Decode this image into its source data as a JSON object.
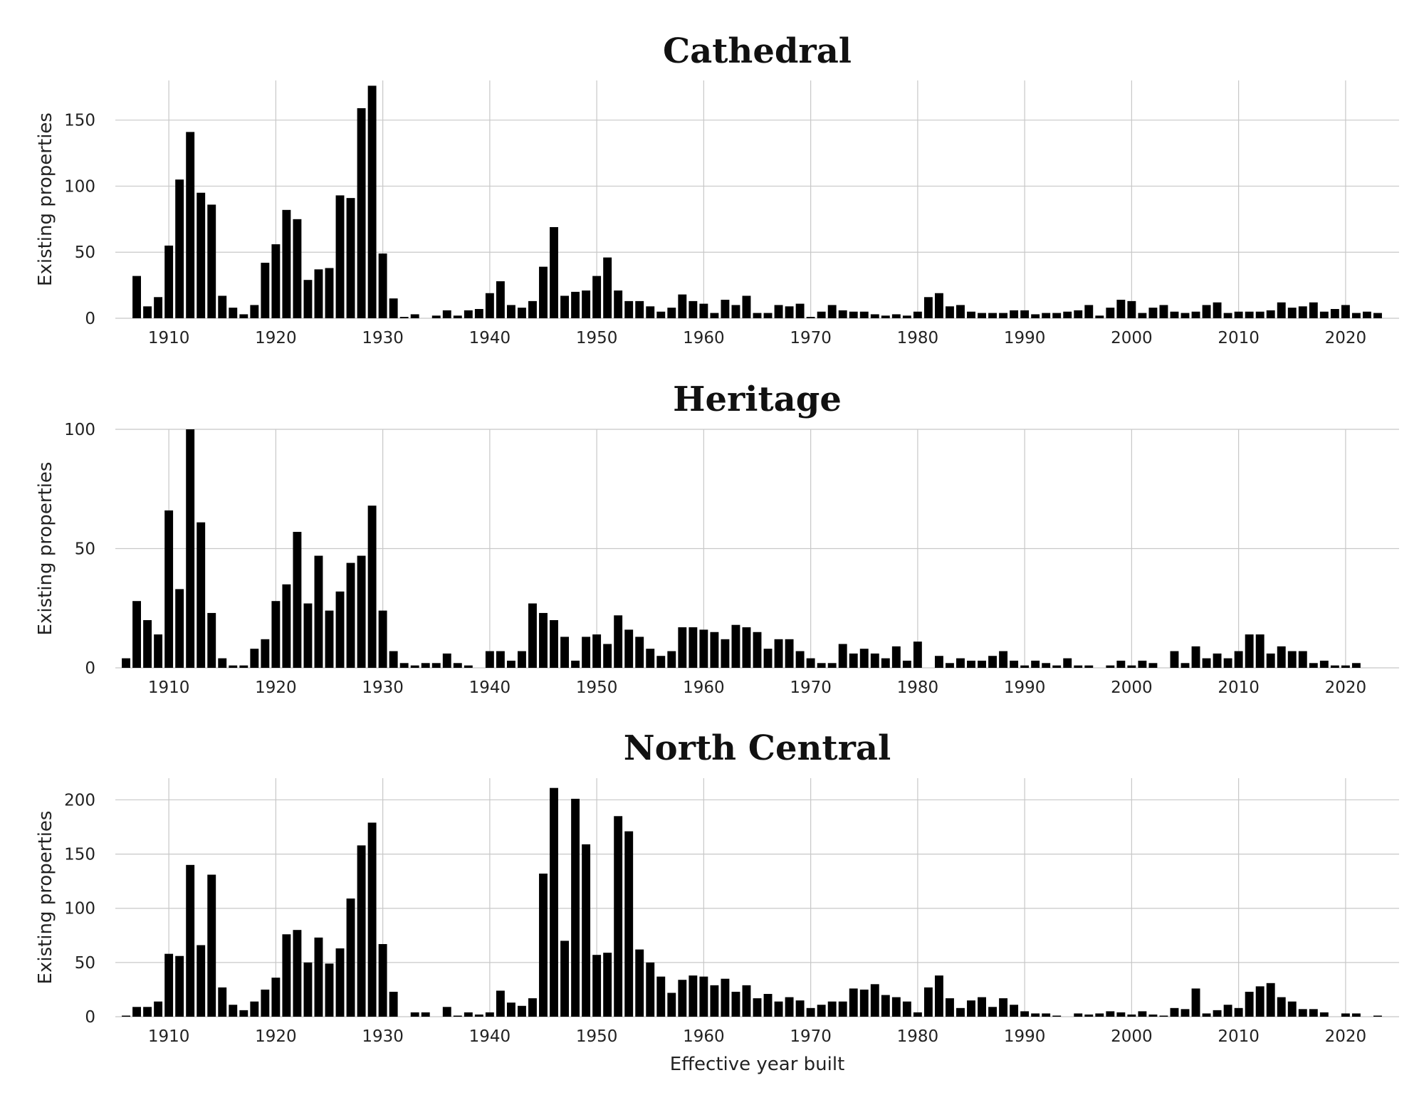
{
  "chart_data": [
    {
      "type": "bar",
      "title": "Cathedral",
      "xlabel": "",
      "ylabel": "Existing properties",
      "ylim": [
        0,
        180
      ],
      "yticks": [
        0,
        50,
        100,
        150
      ],
      "xticks": [
        1910,
        1920,
        1930,
        1940,
        1950,
        1960,
        1970,
        1980,
        1990,
        2000,
        2010,
        2020
      ],
      "xlim": [
        1905,
        2025
      ],
      "grid": true,
      "x": [
        1906,
        1907,
        1908,
        1909,
        1910,
        1911,
        1912,
        1913,
        1914,
        1915,
        1916,
        1917,
        1918,
        1919,
        1920,
        1921,
        1922,
        1923,
        1924,
        1925,
        1926,
        1927,
        1928,
        1929,
        1930,
        1931,
        1932,
        1933,
        1934,
        1935,
        1936,
        1937,
        1938,
        1939,
        1940,
        1941,
        1942,
        1943,
        1944,
        1945,
        1946,
        1947,
        1948,
        1949,
        1950,
        1951,
        1952,
        1953,
        1954,
        1955,
        1956,
        1957,
        1958,
        1959,
        1960,
        1961,
        1962,
        1963,
        1964,
        1965,
        1966,
        1967,
        1968,
        1969,
        1970,
        1971,
        1972,
        1973,
        1974,
        1975,
        1976,
        1977,
        1978,
        1979,
        1980,
        1981,
        1982,
        1983,
        1984,
        1985,
        1986,
        1987,
        1988,
        1989,
        1990,
        1991,
        1992,
        1993,
        1994,
        1995,
        1996,
        1997,
        1998,
        1999,
        2000,
        2001,
        2002,
        2003,
        2004,
        2005,
        2006,
        2007,
        2008,
        2009,
        2010,
        2011,
        2012,
        2013,
        2014,
        2015,
        2016,
        2017,
        2018,
        2019,
        2020,
        2021,
        2022,
        2023
      ],
      "values": [
        0,
        32,
        9,
        16,
        55,
        105,
        141,
        95,
        86,
        17,
        8,
        3,
        10,
        42,
        56,
        82,
        75,
        29,
        37,
        38,
        93,
        91,
        159,
        176,
        49,
        15,
        1,
        3,
        0,
        2,
        6,
        2,
        6,
        7,
        19,
        28,
        10,
        8,
        13,
        39,
        69,
        17,
        20,
        21,
        32,
        46,
        21,
        13,
        13,
        9,
        5,
        8,
        18,
        13,
        11,
        4,
        14,
        10,
        17,
        4,
        4,
        10,
        9,
        11,
        1,
        5,
        10,
        6,
        5,
        5,
        3,
        2,
        3,
        2,
        5,
        16,
        19,
        9,
        10,
        5,
        4,
        4,
        4,
        6,
        6,
        3,
        4,
        4,
        5,
        6,
        10,
        2,
        8,
        14,
        13,
        4,
        8,
        10,
        5,
        4,
        5,
        10,
        12,
        4,
        5,
        5,
        5,
        6,
        12,
        8,
        9,
        12,
        5,
        7,
        10,
        4,
        5,
        4
      ]
    },
    {
      "type": "bar",
      "title": "Heritage",
      "xlabel": "",
      "ylabel": "Existing properties",
      "ylim": [
        0,
        100
      ],
      "yticks": [
        0,
        50,
        100
      ],
      "xticks": [
        1910,
        1920,
        1930,
        1940,
        1950,
        1960,
        1970,
        1980,
        1990,
        2000,
        2010,
        2020
      ],
      "xlim": [
        1905,
        2025
      ],
      "grid": true,
      "x": [
        1906,
        1907,
        1908,
        1909,
        1910,
        1911,
        1912,
        1913,
        1914,
        1915,
        1916,
        1917,
        1918,
        1919,
        1920,
        1921,
        1922,
        1923,
        1924,
        1925,
        1926,
        1927,
        1928,
        1929,
        1930,
        1931,
        1932,
        1933,
        1934,
        1935,
        1936,
        1937,
        1938,
        1939,
        1940,
        1941,
        1942,
        1943,
        1944,
        1945,
        1946,
        1947,
        1948,
        1949,
        1950,
        1951,
        1952,
        1953,
        1954,
        1955,
        1956,
        1957,
        1958,
        1959,
        1960,
        1961,
        1962,
        1963,
        1964,
        1965,
        1966,
        1967,
        1968,
        1969,
        1970,
        1971,
        1972,
        1973,
        1974,
        1975,
        1976,
        1977,
        1978,
        1979,
        1980,
        1981,
        1982,
        1983,
        1984,
        1985,
        1986,
        1987,
        1988,
        1989,
        1990,
        1991,
        1992,
        1993,
        1994,
        1995,
        1996,
        1997,
        1998,
        1999,
        2000,
        2001,
        2002,
        2003,
        2004,
        2005,
        2006,
        2007,
        2008,
        2009,
        2010,
        2011,
        2012,
        2013,
        2014,
        2015,
        2016,
        2017,
        2018,
        2019,
        2020,
        2021,
        2022,
        2023
      ],
      "values": [
        4,
        28,
        20,
        14,
        66,
        33,
        100,
        61,
        23,
        4,
        1,
        1,
        8,
        12,
        28,
        35,
        57,
        27,
        47,
        24,
        32,
        44,
        47,
        68,
        24,
        7,
        2,
        1,
        2,
        2,
        6,
        2,
        1,
        0,
        7,
        7,
        3,
        7,
        27,
        23,
        20,
        13,
        3,
        13,
        14,
        10,
        22,
        16,
        13,
        8,
        5,
        7,
        17,
        17,
        16,
        15,
        12,
        18,
        17,
        15,
        8,
        12,
        12,
        7,
        4,
        2,
        2,
        10,
        6,
        8,
        6,
        4,
        9,
        3,
        11,
        0,
        5,
        2,
        4,
        3,
        3,
        5,
        7,
        3,
        1,
        3,
        2,
        1,
        4,
        1,
        1,
        0,
        1,
        3,
        1,
        3,
        2,
        0,
        7,
        2,
        9,
        4,
        6,
        4,
        7,
        14,
        14,
        6,
        9,
        7,
        7,
        2,
        3,
        1,
        1,
        2,
        0,
        0
      ]
    },
    {
      "type": "bar",
      "title": "North Central",
      "xlabel": "Effective year built",
      "ylabel": "Existing properties",
      "ylim": [
        0,
        220
      ],
      "yticks": [
        0,
        50,
        100,
        150,
        200
      ],
      "xticks": [
        1910,
        1920,
        1930,
        1940,
        1950,
        1960,
        1970,
        1980,
        1990,
        2000,
        2010,
        2020
      ],
      "xlim": [
        1905,
        2025
      ],
      "grid": true,
      "x": [
        1906,
        1907,
        1908,
        1909,
        1910,
        1911,
        1912,
        1913,
        1914,
        1915,
        1916,
        1917,
        1918,
        1919,
        1920,
        1921,
        1922,
        1923,
        1924,
        1925,
        1926,
        1927,
        1928,
        1929,
        1930,
        1931,
        1932,
        1933,
        1934,
        1935,
        1936,
        1937,
        1938,
        1939,
        1940,
        1941,
        1942,
        1943,
        1944,
        1945,
        1946,
        1947,
        1948,
        1949,
        1950,
        1951,
        1952,
        1953,
        1954,
        1955,
        1956,
        1957,
        1958,
        1959,
        1960,
        1961,
        1962,
        1963,
        1964,
        1965,
        1966,
        1967,
        1968,
        1969,
        1970,
        1971,
        1972,
        1973,
        1974,
        1975,
        1976,
        1977,
        1978,
        1979,
        1980,
        1981,
        1982,
        1983,
        1984,
        1985,
        1986,
        1987,
        1988,
        1989,
        1990,
        1991,
        1992,
        1993,
        1994,
        1995,
        1996,
        1997,
        1998,
        1999,
        2000,
        2001,
        2002,
        2003,
        2004,
        2005,
        2006,
        2007,
        2008,
        2009,
        2010,
        2011,
        2012,
        2013,
        2014,
        2015,
        2016,
        2017,
        2018,
        2019,
        2020,
        2021,
        2022,
        2023
      ],
      "values": [
        1,
        9,
        9,
        14,
        58,
        56,
        140,
        66,
        131,
        27,
        11,
        6,
        14,
        25,
        36,
        76,
        80,
        50,
        73,
        49,
        63,
        109,
        158,
        179,
        67,
        23,
        0,
        4,
        4,
        0,
        9,
        1,
        4,
        2,
        4,
        24,
        13,
        10,
        17,
        132,
        211,
        70,
        201,
        159,
        57,
        59,
        185,
        171,
        62,
        50,
        37,
        22,
        34,
        38,
        37,
        29,
        35,
        23,
        29,
        17,
        21,
        14,
        18,
        15,
        8,
        11,
        14,
        14,
        26,
        25,
        30,
        20,
        18,
        14,
        4,
        27,
        38,
        17,
        8,
        15,
        18,
        9,
        17,
        11,
        5,
        3,
        3,
        1,
        0,
        3,
        2,
        3,
        5,
        4,
        2,
        5,
        2,
        1,
        8,
        7,
        26,
        3,
        6,
        11,
        8,
        23,
        28,
        31,
        18,
        14,
        7,
        7,
        4,
        0,
        3,
        3,
        0,
        1
      ]
    }
  ]
}
